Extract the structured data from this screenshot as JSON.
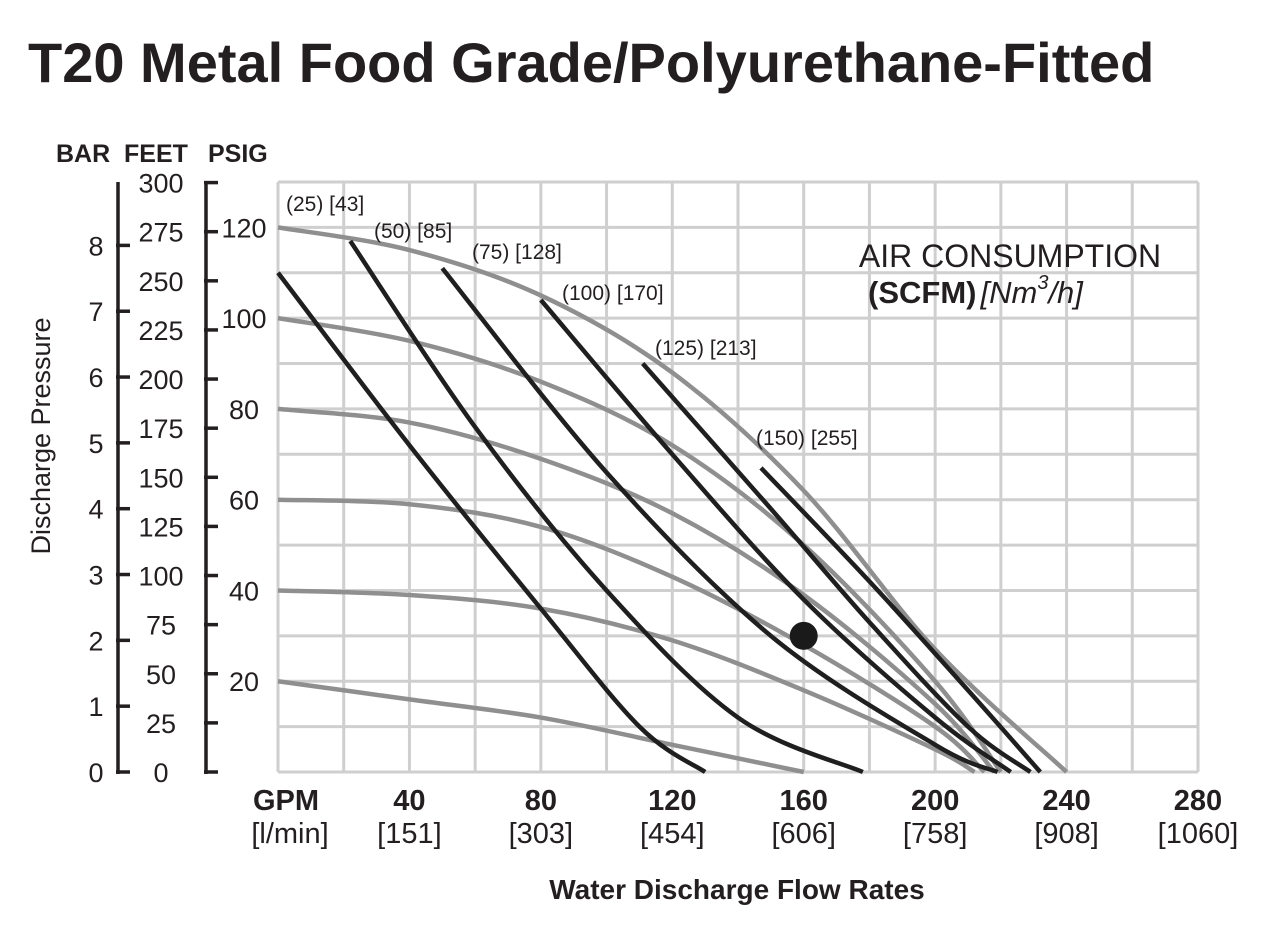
{
  "chart_data": {
    "type": "line",
    "title": "T20 Metal Food Grade/Polyurethane-Fitted",
    "unit_headers": [
      "BAR",
      "FEET",
      "PSIG"
    ],
    "ylabel": "Discharge Pressure",
    "xlabel": "Water Discharge Flow Rates",
    "xlim": [
      0,
      280
    ],
    "ylim_psig": [
      0,
      130
    ],
    "x_axis": {
      "unit_label": "GPM",
      "unit_label_metric": "[l/min]",
      "ticks": [
        {
          "gpm": 40,
          "label": "40",
          "metric": "[151]"
        },
        {
          "gpm": 80,
          "label": "80",
          "metric": "[303]"
        },
        {
          "gpm": 120,
          "label": "120",
          "metric": "[454]"
        },
        {
          "gpm": 160,
          "label": "160",
          "metric": "[606]"
        },
        {
          "gpm": 200,
          "label": "200",
          "metric": "[758]"
        },
        {
          "gpm": 240,
          "label": "240",
          "metric": "[908]"
        },
        {
          "gpm": 280,
          "label": "280",
          "metric": "[1060]"
        }
      ]
    },
    "psig_ticks": [
      {
        "value": 20,
        "label": "20"
      },
      {
        "value": 40,
        "label": "40"
      },
      {
        "value": 60,
        "label": "60"
      },
      {
        "value": 80,
        "label": "80"
      },
      {
        "value": 100,
        "label": "100"
      },
      {
        "value": 120,
        "label": "120"
      }
    ],
    "feet_ticks": [
      {
        "value": 0,
        "label": "0"
      },
      {
        "value": 25,
        "label": "25"
      },
      {
        "value": 50,
        "label": "50"
      },
      {
        "value": 75,
        "label": "75"
      },
      {
        "value": 100,
        "label": "100"
      },
      {
        "value": 125,
        "label": "125"
      },
      {
        "value": 150,
        "label": "150"
      },
      {
        "value": 175,
        "label": "175"
      },
      {
        "value": 200,
        "label": "200"
      },
      {
        "value": 225,
        "label": "225"
      },
      {
        "value": 250,
        "label": "250"
      },
      {
        "value": 275,
        "label": "275"
      },
      {
        "value": 300,
        "label": "300"
      }
    ],
    "bar_ticks": [
      {
        "value": 0,
        "label": "0"
      },
      {
        "value": 1,
        "label": "1"
      },
      {
        "value": 2,
        "label": "2"
      },
      {
        "value": 3,
        "label": "3"
      },
      {
        "value": 4,
        "label": "4"
      },
      {
        "value": 5,
        "label": "5"
      },
      {
        "value": 6,
        "label": "6"
      },
      {
        "value": 7,
        "label": "7"
      },
      {
        "value": 8,
        "label": "8"
      }
    ],
    "zero_label": "0",
    "air_consumption": {
      "title": "AIR CONSUMPTION",
      "units_scfm": "(SCFM)",
      "units_nm3": "[Nm",
      "units_sup": "3",
      "units_end": "/h]"
    },
    "pressure_curves": [
      {
        "name": "120 psig",
        "points": [
          [
            0,
            120
          ],
          [
            40,
            115
          ],
          [
            80,
            105
          ],
          [
            120,
            88
          ],
          [
            160,
            62
          ],
          [
            200,
            27
          ],
          [
            240,
            0
          ]
        ]
      },
      {
        "name": "100 psig",
        "points": [
          [
            0,
            100
          ],
          [
            40,
            95
          ],
          [
            80,
            86
          ],
          [
            120,
            72
          ],
          [
            160,
            50
          ],
          [
            200,
            20
          ],
          [
            220,
            0
          ]
        ]
      },
      {
        "name": "80 psig",
        "points": [
          [
            0,
            80
          ],
          [
            40,
            77
          ],
          [
            80,
            69
          ],
          [
            120,
            57
          ],
          [
            160,
            39
          ],
          [
            200,
            15
          ],
          [
            218,
            0
          ]
        ]
      },
      {
        "name": "60 psig",
        "points": [
          [
            0,
            60
          ],
          [
            40,
            59
          ],
          [
            80,
            54
          ],
          [
            120,
            43
          ],
          [
            160,
            28
          ],
          [
            200,
            10
          ],
          [
            215,
            0
          ]
        ]
      },
      {
        "name": "40 psig",
        "points": [
          [
            0,
            40
          ],
          [
            40,
            39
          ],
          [
            80,
            36
          ],
          [
            120,
            29
          ],
          [
            160,
            18
          ],
          [
            200,
            5
          ],
          [
            212,
            0
          ]
        ]
      },
      {
        "name": "20 psig",
        "points": [
          [
            0,
            20
          ],
          [
            40,
            16
          ],
          [
            80,
            12
          ],
          [
            120,
            6
          ],
          [
            160,
            0
          ]
        ]
      }
    ],
    "air_curves": [
      {
        "name": "(25) [43]",
        "label": "(25) [43]",
        "points": [
          [
            0,
            110
          ],
          [
            40,
            72
          ],
          [
            80,
            36
          ],
          [
            110,
            10
          ],
          [
            130,
            0
          ]
        ]
      },
      {
        "name": "(50) [85]",
        "label": "(50) [85]",
        "points": [
          [
            22,
            117
          ],
          [
            60,
            76
          ],
          [
            100,
            40
          ],
          [
            140,
            12
          ],
          [
            178,
            0
          ]
        ]
      },
      {
        "name": "(75) [128]",
        "label": "(75) [128]",
        "points": [
          [
            50,
            111
          ],
          [
            100,
            66
          ],
          [
            150,
            30
          ],
          [
            200,
            6
          ],
          [
            219,
            0
          ]
        ]
      },
      {
        "name": "(100) [170]",
        "label": "(100) [170]",
        "points": [
          [
            80,
            104
          ],
          [
            120,
            70
          ],
          [
            160,
            38
          ],
          [
            200,
            12
          ],
          [
            223,
            0
          ]
        ]
      },
      {
        "name": "(125) [213]",
        "label": "(125) [213]",
        "points": [
          [
            111,
            90
          ],
          [
            150,
            58
          ],
          [
            180,
            33
          ],
          [
            210,
            10
          ],
          [
            229,
            0
          ]
        ]
      },
      {
        "name": "(150) [255]",
        "label": "(150) [255]",
        "points": [
          [
            147,
            67
          ],
          [
            180,
            42
          ],
          [
            210,
            18
          ],
          [
            232,
            0
          ]
        ]
      }
    ],
    "marker_point": {
      "x": 160,
      "y": 30
    }
  }
}
